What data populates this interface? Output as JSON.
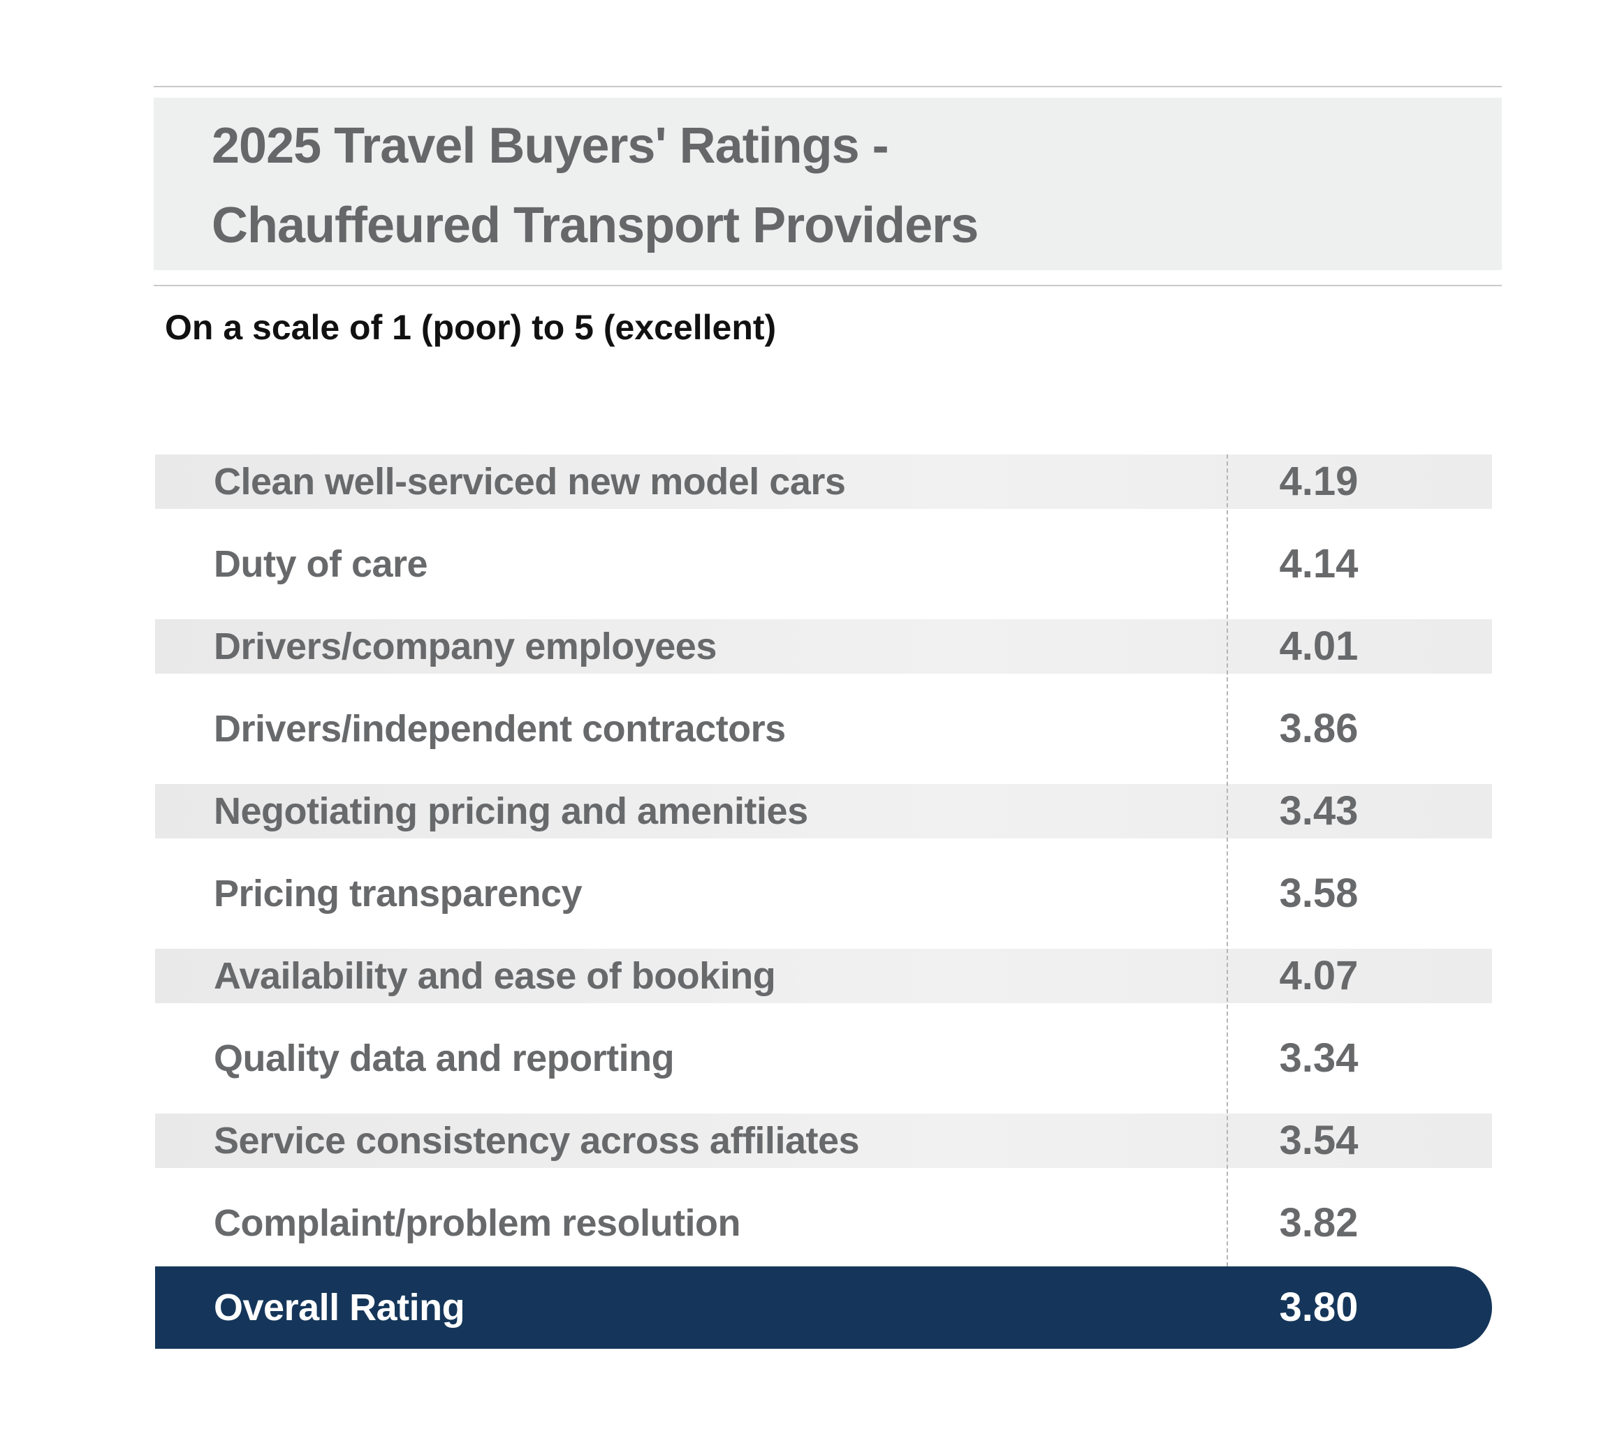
{
  "header": {
    "title_lines": [
      "2025 Travel Buyers' Ratings -",
      "Chauffeured Transport Providers"
    ],
    "subtitle": "On a scale of 1 (poor) to 5 (excellent)"
  },
  "table": {
    "rows": [
      [
        "Clean well-serviced new model cars",
        "4.19"
      ],
      [
        "Duty of care",
        "4.14"
      ],
      [
        "Drivers/company employees",
        "4.01"
      ],
      [
        "Drivers/independent contractors",
        "3.86"
      ],
      [
        "Negotiating pricing and amenities",
        "3.43"
      ],
      [
        "Pricing transparency",
        "3.58"
      ],
      [
        "Availability and ease of booking",
        "4.07"
      ],
      [
        "Quality data and reporting",
        "3.34"
      ],
      [
        "Service consistency across affiliates",
        "3.54"
      ],
      [
        "Complaint/problem resolution",
        "3.82"
      ]
    ],
    "total": [
      "Overall Rating",
      "3.80"
    ]
  }
}
